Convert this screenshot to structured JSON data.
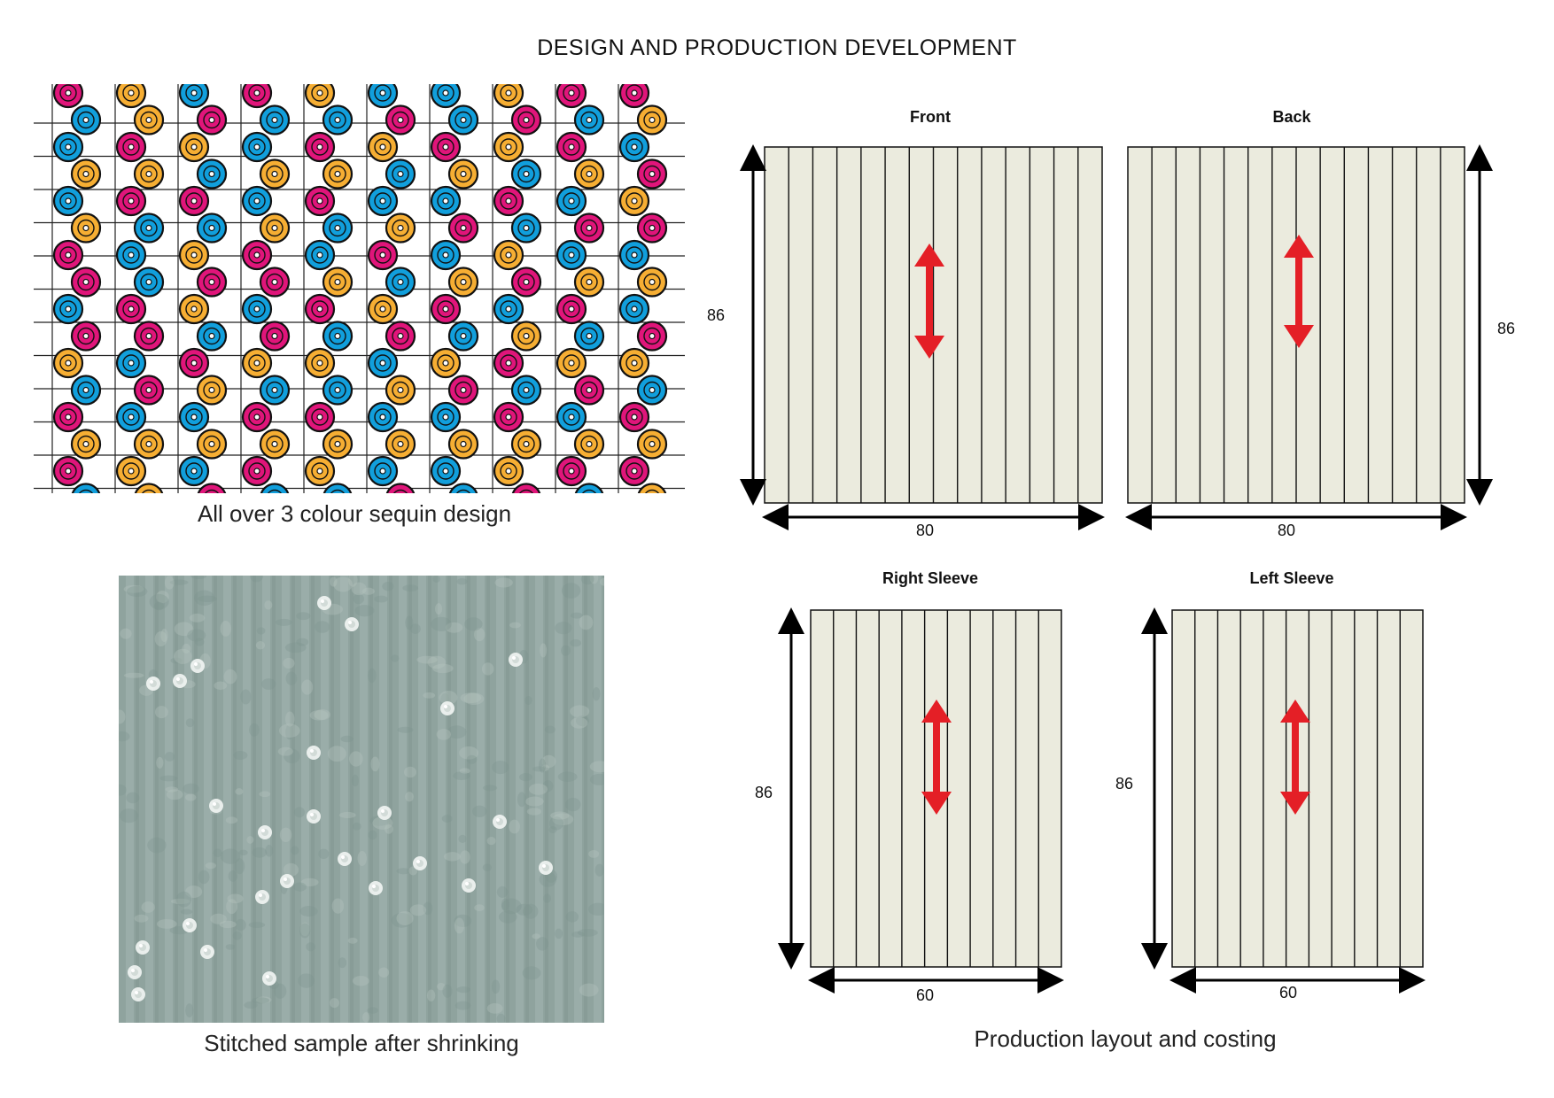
{
  "title": "DESIGN AND PRODUCTION DEVELOPMENT",
  "captions": {
    "sequin_design": "All over 3 colour sequin design",
    "stitched_sample": "Stitched sample after shrinking",
    "production_layout": "Production layout and costing"
  },
  "colors": {
    "magenta": "#e0157a",
    "blue": "#119fdc",
    "orange": "#f6ae33",
    "panel_fill": "#ebebde",
    "grain_arrow": "#e41f26",
    "sample_base": "#8fa39e"
  },
  "panels": [
    {
      "id": "front",
      "label": "Front",
      "height_value": "86",
      "width_value": "80"
    },
    {
      "id": "back",
      "label": "Back",
      "height_value": "86",
      "width_value": "80"
    },
    {
      "id": "right_sleeve",
      "label": "Right Sleeve",
      "height_value": "86",
      "width_value": "60"
    },
    {
      "id": "left_sleeve",
      "label": "Left Sleeve",
      "height_value": "86",
      "width_value": "60"
    }
  ],
  "icons": {
    "grain_arrow": "double-headed-arrow-icon",
    "dimension_arrow": "dimension-arrow-icon"
  }
}
